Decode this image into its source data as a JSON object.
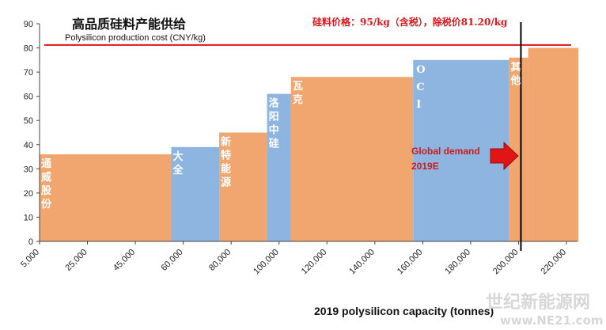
{
  "chart_data": {
    "type": "bar",
    "title": "高品质硅料产能供给",
    "subtitle": "Polysilicon production cost (CNY/kg)",
    "price_note": "硅料价格：95/kg（含税），除税价81.20/kg",
    "xlabel": "2019 polysilicon capacity (tonnes)",
    "ylabel": "",
    "ylim": [
      0,
      90
    ],
    "yticks": [
      0,
      10,
      20,
      30,
      40,
      50,
      60,
      70,
      80,
      90
    ],
    "xticks": [
      "5,000",
      "25,000",
      "45,000",
      "60,000",
      "80,000",
      "100,000",
      "120,000",
      "140,000",
      "160,000",
      "180,000",
      "200,000",
      "220,000"
    ],
    "grid": false,
    "cost_line": 81.2,
    "bars": [
      {
        "label": "通威股份",
        "value": 36,
        "start_tick": 0,
        "end_tick": 2.75,
        "color": "#f0a66e"
      },
      {
        "label": "大全",
        "value": 39,
        "start_tick": 2.75,
        "end_tick": 3.75,
        "color": "#8db5e0"
      },
      {
        "label": "新特能源",
        "value": 45,
        "start_tick": 3.75,
        "end_tick": 4.75,
        "color": "#f0a66e"
      },
      {
        "label": "洛阳中硅",
        "value": 61,
        "start_tick": 4.75,
        "end_tick": 5.25,
        "color": "#8db5e0"
      },
      {
        "label": "瓦克",
        "value": 68,
        "start_tick": 5.25,
        "end_tick": 7.8,
        "color": "#f0a66e"
      },
      {
        "label": "OCI",
        "value": 75,
        "start_tick": 7.8,
        "end_tick": 9.8,
        "color": "#8db5e0"
      },
      {
        "label": "其他",
        "value": 76,
        "start_tick": 9.8,
        "end_tick": 10.2,
        "color": "#f0a66e"
      },
      {
        "label": "",
        "value": 80,
        "start_tick": 10.2,
        "end_tick": 11.25,
        "color": "#f0a66e"
      }
    ],
    "demand_line": {
      "label": "Global demand 2019E",
      "tick_position": 10.0
    }
  },
  "colors": {
    "orange": "#f0a66e",
    "blue": "#8db5e0",
    "cost_line": "#e0141b",
    "demand_line": "#000000"
  },
  "watermark": {
    "line1": "世纪新能源网",
    "line2": "www.NE21.com"
  }
}
